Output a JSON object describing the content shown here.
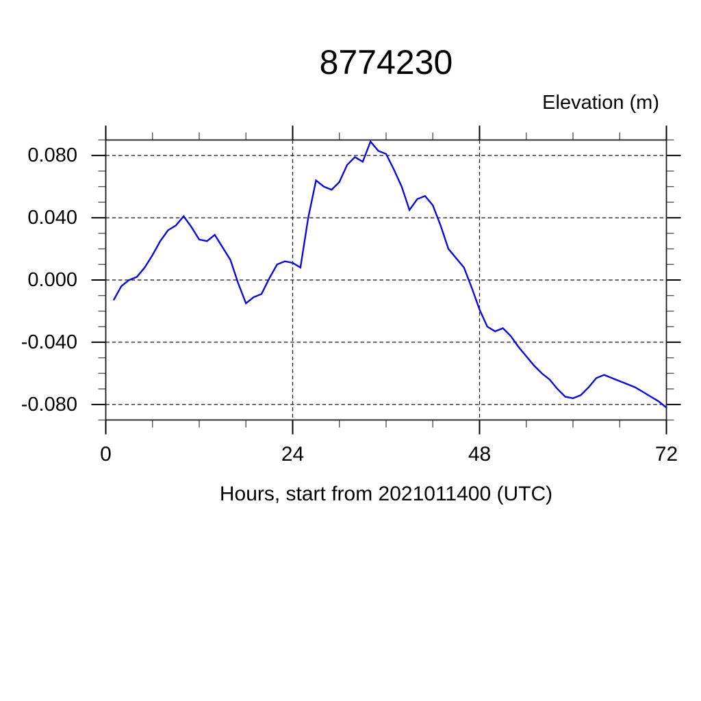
{
  "title": "8774230",
  "y_axis_label": "Elevation (m)",
  "x_axis_label": "Hours, start from 2021011400 (UTC)",
  "y_tick_labels": [
    "0.080",
    "0.040",
    "0.000",
    "-0.040",
    "-0.080"
  ],
  "x_tick_labels": [
    "0",
    "24",
    "48",
    "72"
  ],
  "colors": {
    "line": "#0a0ae0",
    "frame": "#1a1a1a",
    "grid": "#111111",
    "minor_tick": "#555555"
  },
  "chart_data": {
    "type": "line",
    "title": "8774230",
    "xlabel": "Hours, start from 2021011400 (UTC)",
    "ylabel": "Elevation (m)",
    "xlim": [
      0,
      72
    ],
    "ylim": [
      -0.09,
      0.09
    ],
    "x_major_ticks": [
      0,
      24,
      48,
      72
    ],
    "x_minor_ticks": [
      6,
      12,
      18,
      30,
      36,
      42,
      54,
      60,
      66
    ],
    "y_major_ticks": [
      0.08,
      0.04,
      0.0,
      -0.04,
      -0.08
    ],
    "y_minor_ticks": [
      0.09,
      0.07,
      0.06,
      0.05,
      0.03,
      0.02,
      0.01,
      -0.01,
      -0.02,
      -0.03,
      -0.05,
      -0.06,
      -0.07,
      -0.09
    ],
    "grid": "dashed black at major ticks, gridlines at x=24,48 and y=-0.08,-0.04,0,0.04,0.08",
    "legend": "none",
    "series_name": "Elevation (m)",
    "x": [
      1,
      2,
      3,
      4,
      5,
      6,
      7,
      8,
      9,
      10,
      11,
      12,
      13,
      14,
      15,
      16,
      17,
      18,
      19,
      20,
      21,
      22,
      23,
      24,
      25,
      26,
      27,
      28,
      29,
      30,
      31,
      32,
      33,
      34,
      35,
      36,
      37,
      38,
      39,
      40,
      41,
      42,
      43,
      44,
      45,
      46,
      47,
      48,
      49,
      50,
      51,
      52,
      53,
      54,
      55,
      56,
      57,
      58,
      59,
      60,
      61,
      62,
      63,
      64,
      65,
      66,
      67,
      68,
      69,
      70,
      71,
      72
    ],
    "y": [
      -0.013,
      -0.004,
      0.0,
      0.002,
      0.008,
      0.016,
      0.025,
      0.032,
      0.035,
      0.041,
      0.034,
      0.026,
      0.025,
      0.029,
      0.021,
      0.013,
      -0.002,
      -0.015,
      -0.011,
      -0.009,
      0.001,
      0.01,
      0.012,
      0.011,
      0.008,
      0.04,
      0.064,
      0.06,
      0.058,
      0.063,
      0.074,
      0.079,
      0.076,
      0.089,
      0.083,
      0.081,
      0.071,
      0.06,
      0.045,
      0.052,
      0.054,
      0.048,
      0.035,
      0.02,
      0.014,
      0.008,
      -0.005,
      -0.019,
      -0.03,
      -0.033,
      -0.031,
      -0.036,
      -0.043,
      -0.049,
      -0.055,
      -0.06,
      -0.064,
      -0.07,
      -0.075,
      -0.076,
      -0.074,
      -0.069,
      -0.063,
      -0.061,
      -0.063,
      -0.065,
      -0.067,
      -0.069,
      -0.072,
      -0.075,
      -0.078,
      -0.082
    ]
  }
}
